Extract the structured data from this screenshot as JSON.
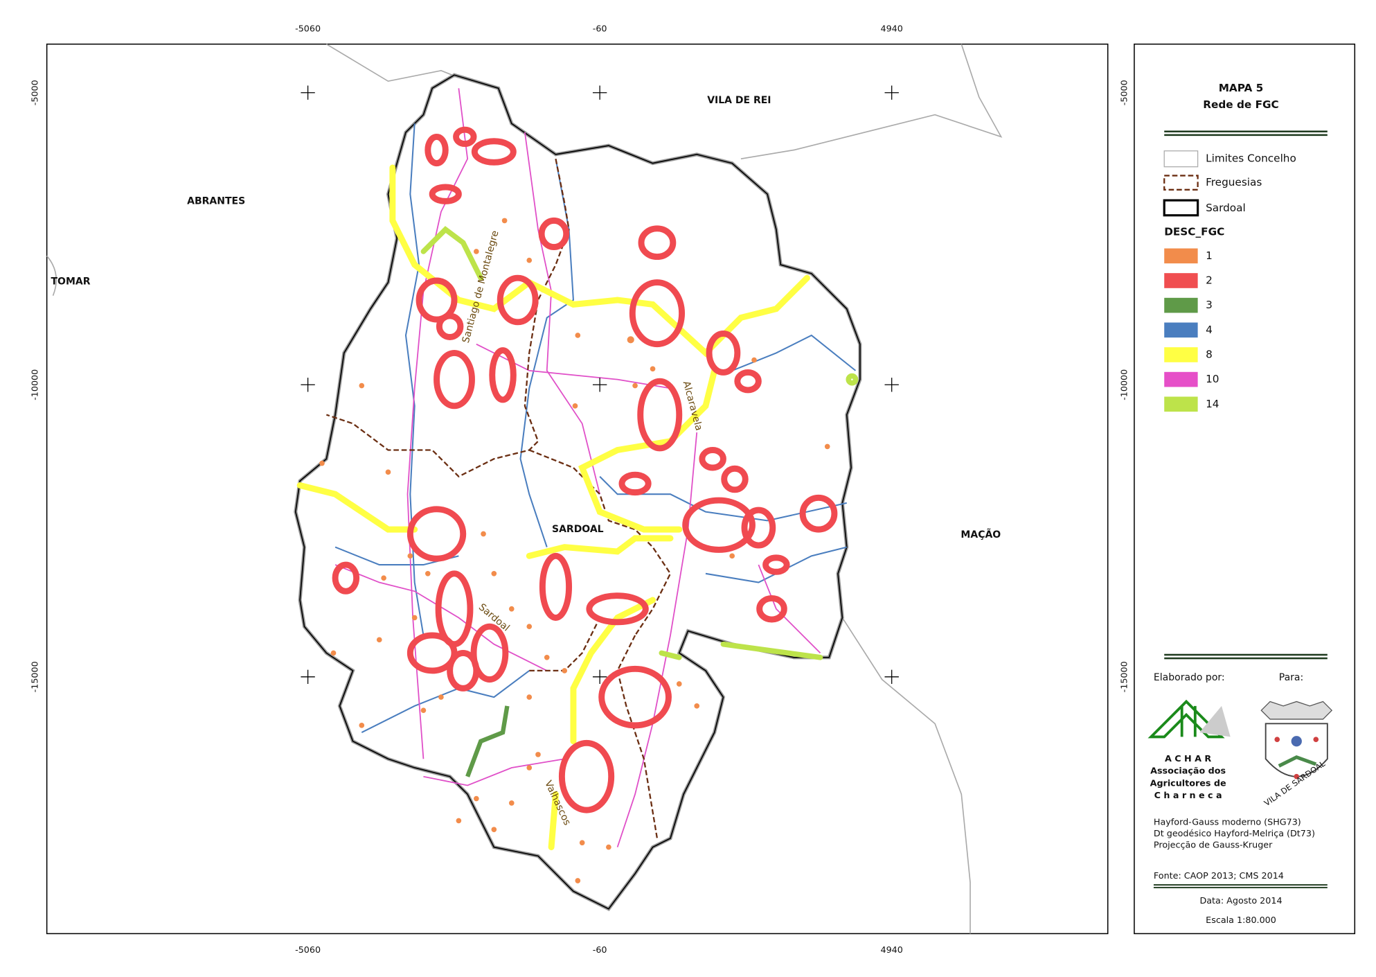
{
  "map": {
    "title": "MAPA 5",
    "subtitle": "Rede de FGC",
    "grid": {
      "x": [
        -5060,
        -60,
        4940
      ],
      "y": [
        -5000,
        -10000,
        -15000
      ]
    },
    "places": [
      "VILA DE REI",
      "ABRANTES",
      "TOMAR",
      "MAÇÃO",
      "SARDOAL"
    ],
    "parishes": [
      "Santiago de Montalegre",
      "Alcaravela",
      "Sardoal",
      "Valhascos"
    ],
    "legend": {
      "boundaries": [
        "Limites Concelho",
        "Freguesias",
        "Sardoal"
      ],
      "field": "DESC_FGC",
      "classes": [
        {
          "label": "1",
          "color": "#f28c4b"
        },
        {
          "label": "2",
          "color": "#f04e50"
        },
        {
          "label": "3",
          "color": "#5f9a48"
        },
        {
          "label": "4",
          "color": "#4a7ebf"
        },
        {
          "label": "8",
          "color": "#ffff44"
        },
        {
          "label": "10",
          "color": "#e64fc8"
        },
        {
          "label": "14",
          "color": "#bde34a"
        }
      ]
    },
    "credits": {
      "made_by": "Elaborado por:",
      "for": "Para:",
      "org": [
        "A C H A R",
        "Associação dos",
        "Agricultores de",
        "C h a r n e c a"
      ],
      "logo_text": "VILA DE SARDOAL",
      "projection": [
        "Hayford-Gauss moderno (SHG73)",
        "Dt geodésico Hayford-Melriça (Dt73)",
        "Projecção de Gauss-Kruger"
      ],
      "source": "Fonte: CAOP 2013; CMS 2014",
      "date": "Data: Agosto 2014",
      "scale": "Escala 1:80.000"
    }
  }
}
